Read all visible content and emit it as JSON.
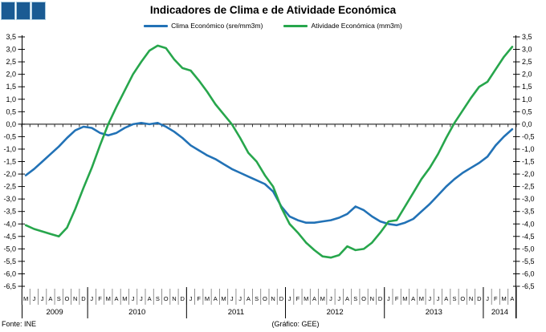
{
  "header": {
    "title": "Indicadores de Clima e de Atividade Económica"
  },
  "legend": [
    {
      "label": "Clima Económico (sre/mm3m)",
      "color": "#2272B6"
    },
    {
      "label": "Atividade Económica (mm3m)",
      "color": "#27A64C"
    }
  ],
  "logo": {
    "square_fill": "#1A5B93",
    "square_border": "#A9CBDF"
  },
  "footer": {
    "source": "Fonte: INE",
    "credit": "(Gráfico: GEE)"
  },
  "chart_data": {
    "type": "line",
    "title": "Indicadores de Clima e de Atividade Económica",
    "xlabel": "",
    "ylabel": "",
    "ylim": [
      -6.5,
      3.5
    ],
    "ytick_step": 0.5,
    "ytick_labels": [
      "3,5",
      "3,0",
      "2,5",
      "2,0",
      "1,5",
      "1,0",
      "0,5",
      "0,0",
      "-0,5",
      "-1,0",
      "-1,5",
      "-2,0",
      "-2,5",
      "-3,0",
      "-3,5",
      "-4,0",
      "-4,5",
      "-5,0",
      "-5,5",
      "-6,0",
      "-6,5"
    ],
    "grid": false,
    "legend_position": "top",
    "axis_position": "zero",
    "years": [
      {
        "label": "2009",
        "span": 8
      },
      {
        "label": "2010",
        "span": 12
      },
      {
        "label": "2011",
        "span": 12
      },
      {
        "label": "2012",
        "span": 12
      },
      {
        "label": "2013",
        "span": 12
      },
      {
        "label": "2014",
        "span": 4
      }
    ],
    "month_letters": [
      "M",
      "J",
      "J",
      "A",
      "S",
      "O",
      "N",
      "D",
      "J",
      "F",
      "M",
      "A",
      "M",
      "J",
      "J",
      "A",
      "S",
      "O",
      "N",
      "D",
      "J",
      "F",
      "M",
      "A",
      "M",
      "J",
      "J",
      "A",
      "S",
      "O",
      "N",
      "D",
      "J",
      "F",
      "M",
      "A",
      "M",
      "J",
      "J",
      "A",
      "S",
      "O",
      "N",
      "D",
      "J",
      "F",
      "M",
      "A",
      "M",
      "J",
      "J",
      "A",
      "S",
      "O",
      "N",
      "D",
      "J",
      "F",
      "M",
      "A"
    ],
    "series": [
      {
        "name": "Clima Económico (sre/mm3m)",
        "color": "#2272B6",
        "values": [
          -2.05,
          -1.8,
          -1.5,
          -1.2,
          -0.9,
          -0.55,
          -0.25,
          -0.1,
          -0.15,
          -0.35,
          -0.45,
          -0.35,
          -0.15,
          0.0,
          0.05,
          0.0,
          0.05,
          -0.1,
          -0.3,
          -0.55,
          -0.85,
          -1.05,
          -1.25,
          -1.4,
          -1.6,
          -1.8,
          -1.95,
          -2.1,
          -2.25,
          -2.4,
          -2.7,
          -3.3,
          -3.7,
          -3.85,
          -3.95,
          -3.95,
          -3.9,
          -3.85,
          -3.75,
          -3.6,
          -3.3,
          -3.45,
          -3.7,
          -3.9,
          -4.0,
          -4.05,
          -3.95,
          -3.8,
          -3.5,
          -3.2,
          -2.85,
          -2.5,
          -2.2,
          -1.95,
          -1.75,
          -1.55,
          -1.3,
          -0.85,
          -0.5,
          -0.2
        ]
      },
      {
        "name": "Atividade Económica (mm3m)",
        "color": "#27A64C",
        "values": [
          -4.05,
          -4.2,
          -4.3,
          -4.4,
          -4.5,
          -4.15,
          -3.4,
          -2.55,
          -1.75,
          -0.85,
          0.0,
          0.7,
          1.35,
          2.0,
          2.5,
          2.95,
          3.15,
          3.05,
          2.6,
          2.25,
          2.15,
          1.75,
          1.3,
          0.8,
          0.4,
          0.0,
          -0.55,
          -1.15,
          -1.5,
          -2.05,
          -2.5,
          -3.35,
          -4.0,
          -4.35,
          -4.75,
          -5.05,
          -5.3,
          -5.35,
          -5.25,
          -4.9,
          -5.05,
          -5.0,
          -4.75,
          -4.35,
          -3.9,
          -3.85,
          -3.3,
          -2.75,
          -2.2,
          -1.75,
          -1.2,
          -0.55,
          0.05,
          0.55,
          1.05,
          1.5,
          1.7,
          2.2,
          2.7,
          3.1
        ]
      }
    ]
  }
}
